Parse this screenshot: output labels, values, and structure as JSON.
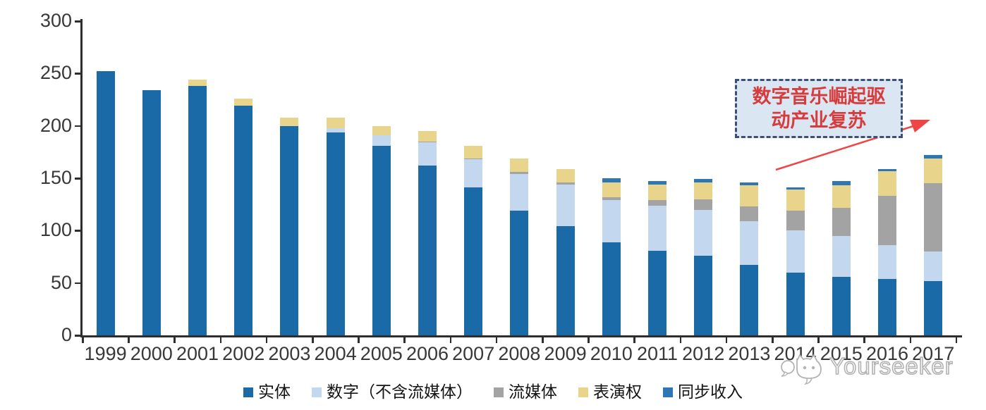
{
  "chart_data": {
    "type": "bar",
    "stacked": true,
    "title": "",
    "xlabel": "",
    "ylabel": "",
    "categories": [
      "1999",
      "2000",
      "2001",
      "2002",
      "2003",
      "2004",
      "2005",
      "2006",
      "2007",
      "2008",
      "2009",
      "2010",
      "2011",
      "2012",
      "2013",
      "2014",
      "2015",
      "2016",
      "2017"
    ],
    "series": [
      {
        "name": "实体",
        "color": "#1a6aa8",
        "values": [
          252,
          234,
          238,
          219,
          200,
          194,
          181,
          162,
          141,
          119,
          104,
          89,
          81,
          76,
          67,
          60,
          56,
          54,
          52
        ]
      },
      {
        "name": "数字（不含流媒体）",
        "color": "#c3d8ee",
        "values": [
          0,
          0,
          0,
          0,
          0,
          4,
          10,
          22,
          27,
          35,
          40,
          40,
          43,
          44,
          42,
          40,
          39,
          32,
          28
        ]
      },
      {
        "name": "流媒体",
        "color": "#a3a3a3",
        "values": [
          0,
          0,
          0,
          0,
          0,
          0,
          0,
          1,
          1,
          2,
          2,
          3,
          5,
          10,
          14,
          19,
          27,
          47,
          65
        ]
      },
      {
        "name": "表演权",
        "color": "#e9d48b",
        "values": [
          0,
          0,
          6,
          7,
          8,
          10,
          9,
          10,
          12,
          13,
          13,
          14,
          15,
          16,
          20,
          20,
          21,
          24,
          24
        ]
      },
      {
        "name": "同步收入",
        "color": "#2f76b5",
        "values": [
          0,
          0,
          0,
          0,
          0,
          0,
          0,
          0,
          0,
          0,
          0,
          4,
          3,
          3,
          3,
          2,
          4,
          2,
          3
        ]
      }
    ],
    "ylim": [
      0,
      300
    ],
    "yticks": [
      0,
      50,
      100,
      150,
      200,
      250,
      300
    ],
    "grid": false,
    "legend_position": "bottom",
    "axis_color": "#2e2e2e",
    "label_color": "#383838"
  },
  "annotation": {
    "lines": [
      "数字音乐崛起驱",
      "动产业复苏"
    ],
    "text_color": "#d63c3c",
    "box_fill": "#dbe6f3",
    "box_border": "#3d4f72",
    "arrow_color": "#ee4545"
  },
  "watermark": {
    "text": "Yourseeker",
    "logo": "chat-cat-logo",
    "color": "#b3b3b3"
  }
}
